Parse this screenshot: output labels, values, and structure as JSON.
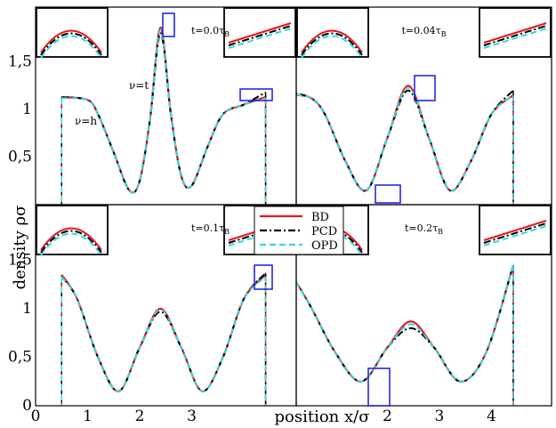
{
  "chart_data": {
    "type": "line",
    "ylabel": "density ρσ",
    "xlabel": "position x/σ",
    "xlim": [
      0,
      4.75
    ],
    "ylim": [
      0,
      2.0
    ],
    "x_ticks": [
      "0",
      "1",
      "2",
      "3",
      "4"
    ],
    "y_ticks": [
      "0",
      "0,5",
      "1",
      "1,5"
    ],
    "legend": {
      "placement": "center",
      "entries": [
        {
          "name": "BD",
          "color": "#e8161b",
          "style": "solid"
        },
        {
          "name": "PCD",
          "color": "#000000",
          "style": "dash-dot"
        },
        {
          "name": "OPD",
          "color": "#33d7e3",
          "style": "dashed"
        }
      ]
    },
    "panels": [
      {
        "label": "t=0.0τ",
        "label_sub": "B",
        "position": "top-left",
        "annotations": [
          "ν=t",
          "ν=h"
        ],
        "x": [
          0.5,
          1.0,
          1.2,
          1.5,
          1.8,
          2.0,
          2.2,
          2.4,
          2.6,
          2.8,
          3.0,
          3.3,
          3.6,
          4.0,
          4.42
        ],
        "series": [
          {
            "name": "BD",
            "values": [
              1.13,
              1.1,
              0.95,
              0.55,
              0.15,
              0.25,
              0.9,
              1.86,
              0.95,
              0.3,
              0.2,
              0.6,
              0.95,
              1.05,
              1.13
            ]
          },
          {
            "name": "PCD",
            "values": [
              1.13,
              1.1,
              0.95,
              0.55,
              0.15,
              0.25,
              0.9,
              1.8,
              0.95,
              0.3,
              0.2,
              0.6,
              0.95,
              1.05,
              1.18
            ]
          },
          {
            "name": "OPD",
            "values": [
              1.12,
              1.1,
              0.95,
              0.55,
              0.15,
              0.25,
              0.9,
              1.84,
              0.95,
              0.3,
              0.2,
              0.6,
              0.95,
              1.05,
              1.12
            ]
          }
        ]
      },
      {
        "label": "t=0.04τ",
        "label_sub": "B",
        "position": "top-right",
        "x": [
          0.05,
          0.5,
          0.8,
          1.2,
          1.6,
          2.0,
          2.4,
          2.8,
          3.2,
          3.6,
          4.0,
          4.42
        ],
        "series": [
          {
            "name": "BD",
            "values": [
              1.15,
              1.13,
              0.95,
              0.45,
              0.15,
              0.7,
              1.25,
              0.7,
              0.15,
              0.45,
              0.95,
              1.15
            ]
          },
          {
            "name": "PCD",
            "values": [
              1.18,
              1.13,
              0.95,
              0.45,
              0.15,
              0.7,
              1.2,
              0.7,
              0.15,
              0.45,
              0.95,
              1.2
            ]
          },
          {
            "name": "OPD",
            "values": [
              1.15,
              1.13,
              0.95,
              0.45,
              0.15,
              0.7,
              1.23,
              0.7,
              0.15,
              0.45,
              0.95,
              1.15
            ]
          }
        ]
      },
      {
        "label": "t=0.1τ",
        "label_sub": "B",
        "position": "bottom-left",
        "x": [
          0.5,
          0.8,
          1.2,
          1.6,
          2.0,
          2.4,
          2.8,
          3.2,
          3.6,
          4.0,
          4.42
        ],
        "series": [
          {
            "name": "BD",
            "values": [
              1.35,
              1.1,
              0.5,
              0.15,
              0.6,
              1.0,
              0.6,
              0.15,
              0.5,
              1.1,
              1.35
            ]
          },
          {
            "name": "PCD",
            "values": [
              1.33,
              1.1,
              0.5,
              0.15,
              0.6,
              0.97,
              0.6,
              0.15,
              0.5,
              1.1,
              1.37
            ]
          },
          {
            "name": "OPD",
            "values": [
              1.33,
              1.1,
              0.5,
              0.15,
              0.6,
              0.99,
              0.6,
              0.15,
              0.5,
              1.1,
              1.33
            ]
          }
        ]
      },
      {
        "label": "t=0.2τ",
        "label_sub": "B",
        "position": "bottom-right",
        "x": [
          0.05,
          0.5,
          1.0,
          1.5,
          2.0,
          2.45,
          2.9,
          3.4,
          3.9,
          4.42
        ],
        "series": [
          {
            "name": "BD",
            "values": [
              1.45,
              1.05,
              0.55,
              0.25,
              0.6,
              0.87,
              0.6,
              0.25,
              0.55,
              1.45
            ]
          },
          {
            "name": "PCD",
            "values": [
              1.45,
              1.05,
              0.55,
              0.25,
              0.6,
              0.8,
              0.6,
              0.25,
              0.55,
              1.45
            ]
          },
          {
            "name": "OPD",
            "values": [
              1.45,
              1.05,
              0.55,
              0.25,
              0.6,
              0.84,
              0.6,
              0.25,
              0.55,
              1.45
            ]
          }
        ]
      }
    ]
  },
  "colors": {
    "bd": "#e8161b",
    "pcd": "#000000",
    "opd": "#33d7e3",
    "zoom_box": "#1a1adb"
  }
}
